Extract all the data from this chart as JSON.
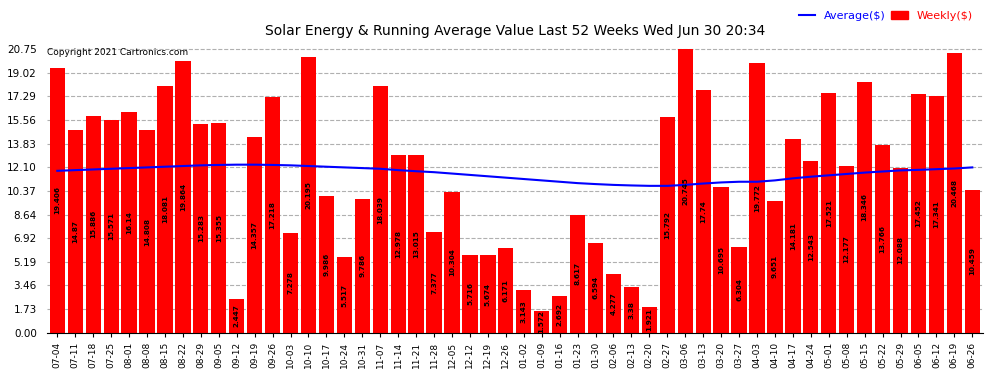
{
  "title": "Solar Energy & Running Average Value Last 52 Weeks Wed Jun 30 20:34",
  "copyright": "Copyright 2021 Cartronics.com",
  "bar_color": "#ff0000",
  "avg_line_color": "#0000ff",
  "weekly_label_color": "#ff0000",
  "avg_label_color": "#0000ff",
  "background_color": "#ffffff",
  "grid_color": "#b0b0b0",
  "yticks": [
    0.0,
    1.73,
    3.46,
    5.19,
    6.92,
    8.64,
    10.37,
    12.1,
    13.83,
    15.56,
    17.29,
    19.02,
    20.75
  ],
  "categories": [
    "07-04",
    "07-11",
    "07-18",
    "07-25",
    "08-01",
    "08-08",
    "08-15",
    "08-22",
    "08-29",
    "09-05",
    "09-12",
    "09-19",
    "09-26",
    "10-03",
    "10-10",
    "10-17",
    "10-24",
    "10-31",
    "11-07",
    "11-14",
    "11-21",
    "11-28",
    "12-05",
    "12-12",
    "12-19",
    "12-26",
    "01-02",
    "01-09",
    "01-16",
    "01-23",
    "01-30",
    "02-06",
    "02-13",
    "02-20",
    "02-27",
    "03-06",
    "03-13",
    "03-20",
    "03-27",
    "04-03",
    "04-10",
    "04-17",
    "04-24",
    "05-01",
    "05-08",
    "05-15",
    "05-22",
    "05-29",
    "06-05",
    "06-12",
    "06-19",
    "06-26"
  ],
  "weekly_values": [
    19.406,
    14.87,
    15.886,
    15.571,
    16.14,
    14.808,
    18.081,
    19.864,
    15.283,
    15.355,
    2.447,
    14.357,
    17.218,
    7.278,
    20.195,
    9.986,
    5.517,
    9.786,
    18.039,
    12.978,
    13.015,
    7.377,
    10.304,
    5.716,
    5.674,
    6.171,
    3.143,
    1.572,
    2.692,
    8.617,
    6.594,
    4.277,
    3.38,
    1.921,
    15.792,
    20.745,
    17.74,
    10.695,
    6.304,
    19.772,
    9.651,
    14.181,
    12.543,
    17.521,
    12.177,
    18.346,
    13.766,
    12.088,
    17.452,
    17.341,
    20.468,
    10.459
  ],
  "avg_values": [
    11.85,
    11.9,
    11.95,
    12.0,
    12.05,
    12.1,
    12.15,
    12.2,
    12.25,
    12.28,
    12.3,
    12.3,
    12.28,
    12.25,
    12.2,
    12.15,
    12.1,
    12.05,
    12.0,
    11.9,
    11.82,
    11.75,
    11.65,
    11.55,
    11.45,
    11.35,
    11.25,
    11.15,
    11.05,
    10.95,
    10.88,
    10.82,
    10.78,
    10.75,
    10.75,
    10.82,
    10.92,
    11.0,
    11.05,
    11.05,
    11.15,
    11.3,
    11.42,
    11.52,
    11.62,
    11.72,
    11.8,
    11.88,
    11.92,
    11.97,
    12.02,
    12.1
  ],
  "ylim_max": 21.5
}
